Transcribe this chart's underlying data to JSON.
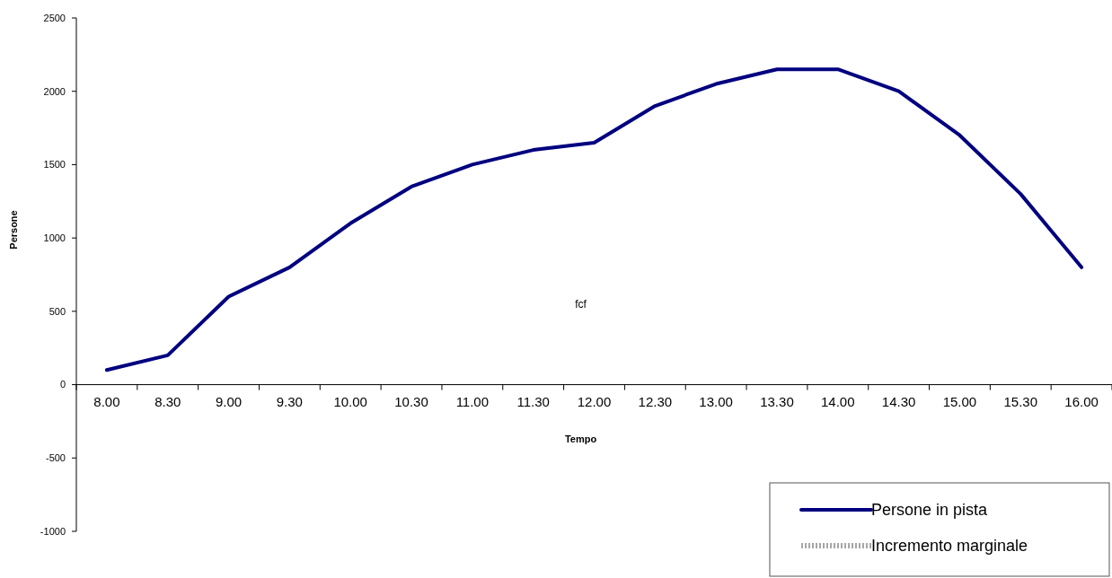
{
  "chart_data": {
    "type": "line",
    "xlabel": "Tempo",
    "ylabel": "Persone",
    "categories": [
      "8.00",
      "8.30",
      "9.00",
      "9.30",
      "10.00",
      "10.30",
      "11.00",
      "11.30",
      "12.00",
      "12.30",
      "13.00",
      "13.30",
      "14.00",
      "14.30",
      "15.00",
      "15.30",
      "16.00"
    ],
    "series": [
      {
        "name": "Persone in pista",
        "color": "#000080",
        "values": [
          100,
          200,
          600,
          800,
          1100,
          1350,
          1500,
          1600,
          1650,
          1900,
          2050,
          2150,
          2150,
          2000,
          1700,
          1300,
          800
        ]
      },
      {
        "name": "Incremento marginale",
        "color": "#a6a6a6",
        "line_style": "dotted",
        "values": [
          null,
          null,
          null,
          null,
          null,
          null,
          null,
          null,
          null,
          null,
          null,
          null,
          null,
          null,
          null,
          null,
          null
        ]
      }
    ],
    "ylim": [
      -1000,
      2500
    ],
    "yticks": [
      -1000,
      -500,
      0,
      500,
      1000,
      1500,
      2000,
      2500
    ],
    "annotations": [
      "fcf"
    ],
    "legend": "bottom right",
    "grid": false
  }
}
